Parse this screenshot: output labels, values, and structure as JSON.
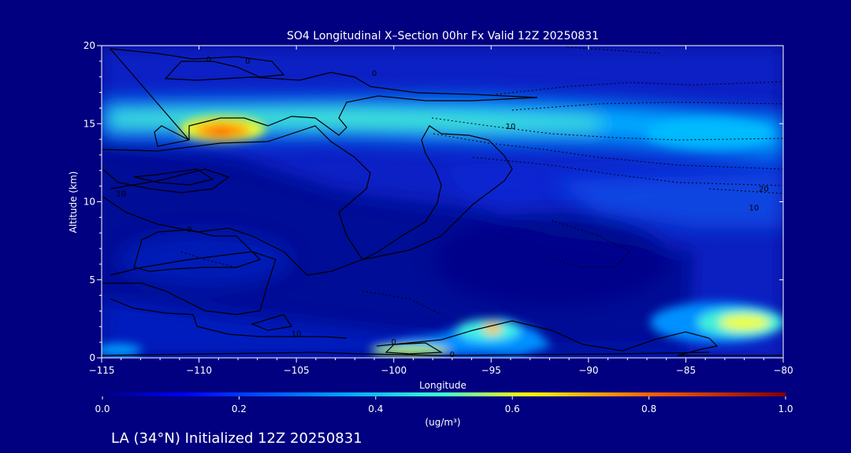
{
  "chart_data": {
    "type": "heatmap",
    "title": "SO4 Longitudinal X–Section 00hr  Fx Valid 12Z 20250831",
    "xlabel": "Longitude",
    "ylabel": "Altitude (km)",
    "xlim": [
      -115,
      -80
    ],
    "ylim": [
      0,
      20
    ],
    "x_ticks": [
      -115,
      -110,
      -105,
      -100,
      -95,
      -90,
      -85,
      -80
    ],
    "x_tick_labels": [
      "−115",
      "−110",
      "−105",
      "−100",
      "−95",
      "−90",
      "−85",
      "−80"
    ],
    "y_ticks": [
      0,
      5,
      10,
      15,
      20
    ],
    "y_tick_labels": [
      "0",
      "5",
      "10",
      "15",
      "20"
    ],
    "colorbar": {
      "min": 0.0,
      "max": 1.0,
      "ticks": [
        0.0,
        0.2,
        0.4,
        0.6,
        0.8,
        1.0
      ],
      "tick_labels": [
        "0.0",
        "0.2",
        "0.4",
        "0.6",
        "0.8",
        "1.0"
      ],
      "unit_label": "(ug/m³)"
    },
    "field_features": [
      {
        "name": "upper-layer-band",
        "lon_range": [
          -115,
          -80
        ],
        "alt_range": [
          13,
          17
        ],
        "peak_value": 0.45
      },
      {
        "name": "peak-near-110W",
        "lon": -109,
        "alt": 14.5,
        "value": 0.68
      },
      {
        "name": "surface-plume-95W",
        "lon": -95,
        "alt": 1.8,
        "value": 0.6
      },
      {
        "name": "surface-plume-100W",
        "lon": -99,
        "alt": 0.5,
        "value": 0.5
      },
      {
        "name": "low-level-maximum-82W",
        "lon": -82.5,
        "alt": 2.3,
        "value": 0.55
      },
      {
        "name": "upper-right-band-85W",
        "lon_range": [
          -90,
          -80
        ],
        "alt_range": [
          10,
          14
        ],
        "value": 0.25
      }
    ],
    "contour_labels": [
      {
        "text": "0",
        "lon": -109.5,
        "alt": 19.1
      },
      {
        "text": "0",
        "lon": -107.5,
        "alt": 19.0
      },
      {
        "text": "0",
        "lon": -101,
        "alt": 18.2
      },
      {
        "text": "10",
        "lon": -94,
        "alt": 14.8
      },
      {
        "text": "10",
        "lon": -114,
        "alt": 10.5
      },
      {
        "text": "0",
        "lon": -110.5,
        "alt": 8.2
      },
      {
        "text": "0",
        "lon": -100,
        "alt": 1.0
      },
      {
        "text": "0",
        "lon": -97,
        "alt": 0.2
      },
      {
        "text": "10",
        "lon": -105,
        "alt": 1.5
      },
      {
        "text": "20",
        "lon": -81,
        "alt": 10.8
      },
      {
        "text": "10",
        "lon": -81.5,
        "alt": 9.6
      }
    ]
  },
  "footer": {
    "caption": "LA (34°N) Initialized 12Z 20250831"
  },
  "colors": {
    "background": "#000080",
    "text": "#ffffff"
  }
}
